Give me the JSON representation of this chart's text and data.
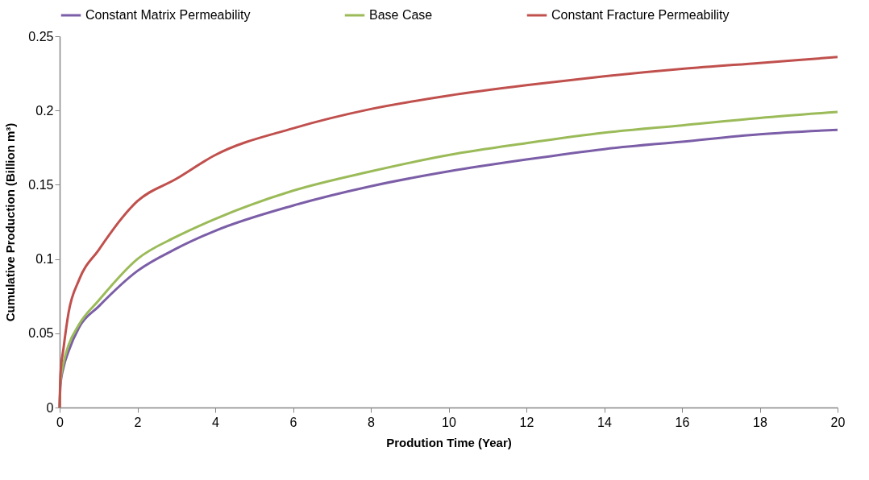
{
  "chart_data": {
    "type": "line",
    "xlabel": "Prodution Time (Year)",
    "ylabel": "Cumulative Production (Billion m³)",
    "xlim": [
      0,
      20
    ],
    "xticks": [
      0,
      2,
      4,
      6,
      8,
      10,
      12,
      14,
      16,
      18,
      20
    ],
    "ylim": [
      0,
      0.25
    ],
    "yticks": [
      0,
      0.05,
      0.1,
      0.15,
      0.2,
      0.25
    ],
    "grid": false,
    "legend": "top",
    "line_style": "solid",
    "marker": "none",
    "series": [
      {
        "name": "Constant Matrix Permeability",
        "color": "#7b5ea7",
        "x": [
          0,
          0.02,
          0.1,
          0.23,
          0.5,
          1,
          2,
          3,
          4,
          6,
          8,
          10,
          12,
          14,
          16,
          18,
          20
        ],
        "values": [
          0,
          0.015,
          0.027,
          0.038,
          0.054,
          0.068,
          0.092,
          0.107,
          0.119,
          0.136,
          0.149,
          0.159,
          0.167,
          0.174,
          0.179,
          0.184,
          0.187
        ]
      },
      {
        "name": "Base Case",
        "color": "#9bbb59",
        "x": [
          0,
          0.02,
          0.1,
          0.23,
          0.5,
          1,
          2,
          3,
          4,
          6,
          8,
          10,
          12,
          14,
          16,
          18,
          20
        ],
        "values": [
          0,
          0.017,
          0.03,
          0.042,
          0.056,
          0.072,
          0.1,
          0.115,
          0.127,
          0.146,
          0.159,
          0.17,
          0.178,
          0.185,
          0.19,
          0.195,
          0.199
        ]
      },
      {
        "name": "Constant Fracture Permeability",
        "color": "#c0504d",
        "x": [
          0,
          0.02,
          0.1,
          0.23,
          0.5,
          1,
          2,
          3,
          4,
          6,
          8,
          10,
          12,
          14,
          16,
          18,
          20
        ],
        "values": [
          0,
          0.022,
          0.04,
          0.064,
          0.086,
          0.106,
          0.139,
          0.154,
          0.17,
          0.188,
          0.201,
          0.21,
          0.217,
          0.223,
          0.228,
          0.232,
          0.236
        ]
      }
    ]
  }
}
